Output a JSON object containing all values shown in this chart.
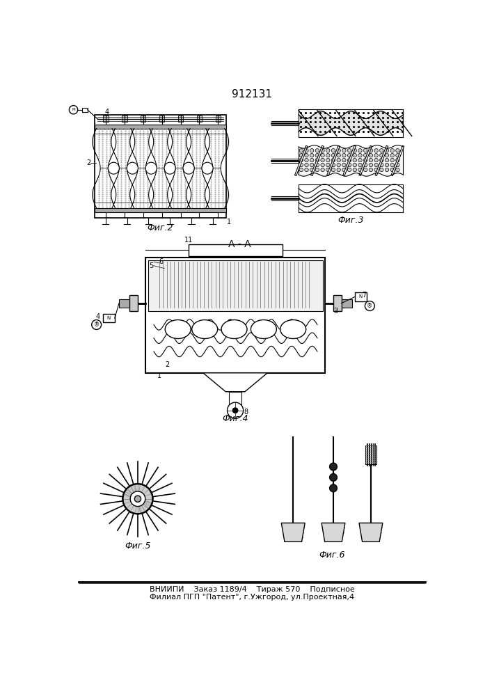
{
  "title": "912131",
  "footer_line1": "ВНИИПИ    Заказ 1189/4    Тираж 570    Подписное",
  "footer_line2": "Филиал ПГП \"Патент\", г.Ужгород, ул.Проектная,4",
  "fig2_label": "Фиг.2",
  "fig3_label": "Фиг.3",
  "fig4_label": "Фиг.4",
  "fig5_label": "Фиг.5",
  "fig6_label": "Фиг.6",
  "aa_label": "А - А",
  "bg_color": "#ffffff"
}
